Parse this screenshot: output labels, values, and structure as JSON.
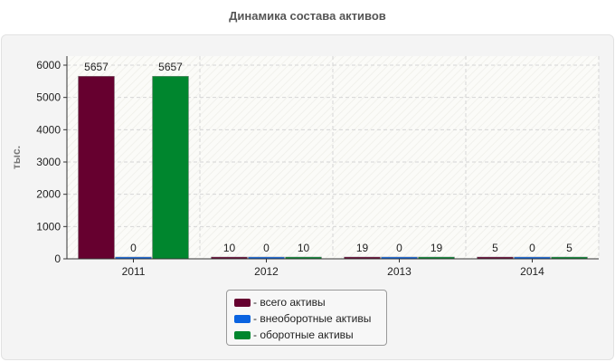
{
  "chart_data": {
    "type": "bar",
    "title": "Динамика состава активов",
    "ylabel": "тыс.",
    "xlabel": "",
    "categories": [
      "2011",
      "2012",
      "2013",
      "2014"
    ],
    "ylim": [
      0,
      6000
    ],
    "yticks": [
      0,
      1000,
      2000,
      3000,
      4000,
      5000,
      6000
    ],
    "grid": true,
    "legend_position": "bottom",
    "series": [
      {
        "name": "- всего активы",
        "values": [
          5657,
          10,
          19,
          5
        ],
        "color": "#66002f"
      },
      {
        "name": "- внеоборотные активы",
        "values": [
          0,
          0,
          0,
          0
        ],
        "color": "#0a63e0"
      },
      {
        "name": "- оборотные активы",
        "values": [
          5657,
          10,
          19,
          5
        ],
        "color": "#00862e"
      }
    ]
  }
}
